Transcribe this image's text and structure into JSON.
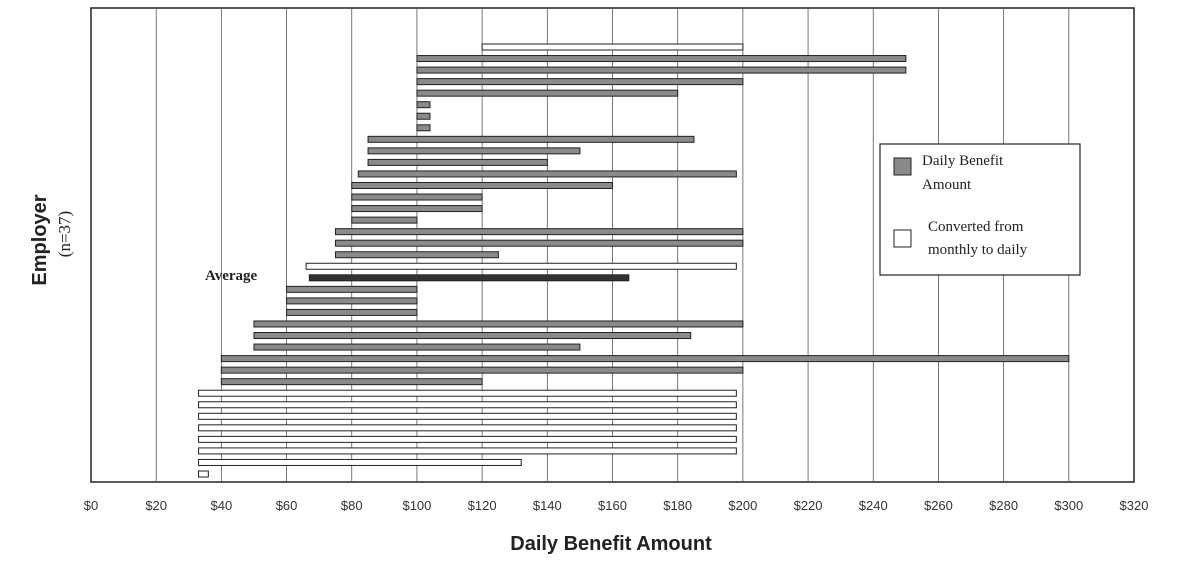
{
  "chart_data": {
    "type": "bar",
    "orientation": "horizontal-range",
    "title": "",
    "xlabel": "Daily Benefit Amount",
    "ylabel": "Employer",
    "ylabel_sub": "(n=37)",
    "xlim": [
      0,
      320
    ],
    "x_ticks": [
      0,
      20,
      40,
      60,
      80,
      100,
      120,
      140,
      160,
      180,
      200,
      220,
      240,
      260,
      280,
      300,
      320
    ],
    "x_tick_labels": [
      "$0",
      "$20",
      "$40",
      "$60",
      "$80",
      "$100",
      "$120",
      "$140",
      "$160",
      "$180",
      "$200",
      "$220",
      "$240",
      "$260",
      "$280",
      "$300",
      "$320"
    ],
    "grid": "vertical",
    "legend_position": "right",
    "legend": [
      {
        "key": "daily",
        "label": "Daily Benefit Amount",
        "color": "#8a8a8a"
      },
      {
        "key": "converted",
        "label": "Converted from monthly to daily",
        "color": "#ffffff"
      }
    ],
    "annotations": [
      {
        "text": "Average"
      }
    ],
    "colors": {
      "daily": "#8a8a8a",
      "converted": "#ffffff",
      "average": "#333333",
      "outline": "#222222"
    },
    "series": [
      {
        "type": "converted",
        "min": 120,
        "max": 200
      },
      {
        "type": "daily",
        "min": 100,
        "max": 250
      },
      {
        "type": "daily",
        "min": 100,
        "max": 250
      },
      {
        "type": "daily",
        "min": 100,
        "max": 200
      },
      {
        "type": "daily",
        "min": 100,
        "max": 180
      },
      {
        "type": "daily",
        "min": 100,
        "max": 104
      },
      {
        "type": "daily",
        "min": 100,
        "max": 104
      },
      {
        "type": "daily",
        "min": 100,
        "max": 104
      },
      {
        "type": "daily",
        "min": 85,
        "max": 185
      },
      {
        "type": "daily",
        "min": 85,
        "max": 150
      },
      {
        "type": "daily",
        "min": 85,
        "max": 140
      },
      {
        "type": "daily",
        "min": 82,
        "max": 198
      },
      {
        "type": "daily",
        "min": 80,
        "max": 160
      },
      {
        "type": "daily",
        "min": 80,
        "max": 120
      },
      {
        "type": "daily",
        "min": 80,
        "max": 120
      },
      {
        "type": "daily",
        "min": 80,
        "max": 100
      },
      {
        "type": "daily",
        "min": 75,
        "max": 200
      },
      {
        "type": "daily",
        "min": 75,
        "max": 200
      },
      {
        "type": "daily",
        "min": 75,
        "max": 125
      },
      {
        "type": "converted",
        "min": 66,
        "max": 198
      },
      {
        "type": "average",
        "min": 67,
        "max": 165
      },
      {
        "type": "daily",
        "min": 60,
        "max": 100
      },
      {
        "type": "daily",
        "min": 60,
        "max": 100
      },
      {
        "type": "daily",
        "min": 60,
        "max": 100
      },
      {
        "type": "daily",
        "min": 50,
        "max": 200
      },
      {
        "type": "daily",
        "min": 50,
        "max": 184
      },
      {
        "type": "daily",
        "min": 50,
        "max": 150
      },
      {
        "type": "daily",
        "min": 40,
        "max": 300
      },
      {
        "type": "daily",
        "min": 40,
        "max": 200
      },
      {
        "type": "daily",
        "min": 40,
        "max": 120
      },
      {
        "type": "converted",
        "min": 33,
        "max": 198
      },
      {
        "type": "converted",
        "min": 33,
        "max": 198
      },
      {
        "type": "converted",
        "min": 33,
        "max": 198
      },
      {
        "type": "converted",
        "min": 33,
        "max": 198
      },
      {
        "type": "converted",
        "min": 33,
        "max": 198
      },
      {
        "type": "converted",
        "min": 33,
        "max": 198
      },
      {
        "type": "converted",
        "min": 33,
        "max": 132
      },
      {
        "type": "converted",
        "min": 33,
        "max": 36
      }
    ]
  }
}
